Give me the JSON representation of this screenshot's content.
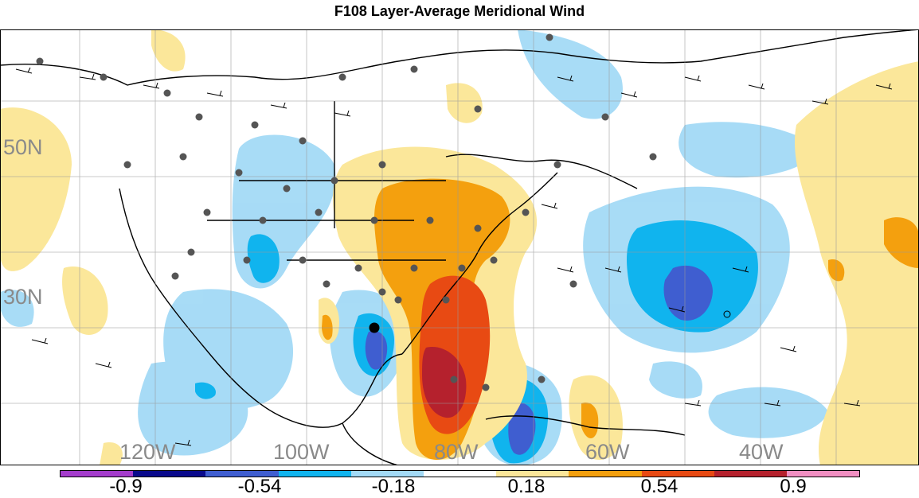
{
  "title": "F108 Layer-Average Meridional Wind",
  "lat_labels": [
    "50N",
    "30N"
  ],
  "lon_labels": [
    "120W",
    "100W",
    "80W",
    "60W",
    "40W"
  ],
  "colorbar": {
    "colors": [
      "#a43ccc",
      "#0a0a8c",
      "#3f5ed0",
      "#10b4ee",
      "#a3daf6",
      "#ffffff",
      "#fbe79a",
      "#f4a00e",
      "#e84a13",
      "#b5212d",
      "#f18fc2"
    ],
    "labels": [
      "-0.9",
      "-0.54",
      "-0.18",
      "0.18",
      "0.54",
      "0.9"
    ]
  }
}
